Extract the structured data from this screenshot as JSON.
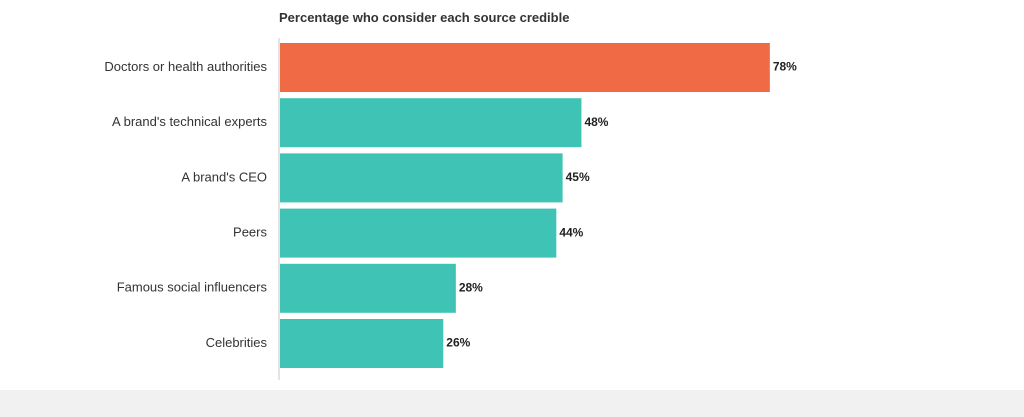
{
  "chart_data": {
    "type": "bar",
    "orientation": "horizontal",
    "title": "Percentage who consider each source credible",
    "categories": [
      "Doctors or health authorities",
      "A brand's technical experts",
      "A brand's CEO",
      "Peers",
      "Famous social influencers",
      "Celebrities"
    ],
    "values": [
      78,
      48,
      45,
      44,
      28,
      26
    ],
    "value_labels": [
      "78%",
      "48%",
      "45%",
      "44%",
      "28%",
      "26%"
    ],
    "unit": "%",
    "xlim": [
      0,
      100
    ],
    "grid": false,
    "colors": {
      "highlight": "#ef6a45",
      "default": "#3fc3b5",
      "axis": "#c8c8c8"
    },
    "highlight_index": 0
  }
}
